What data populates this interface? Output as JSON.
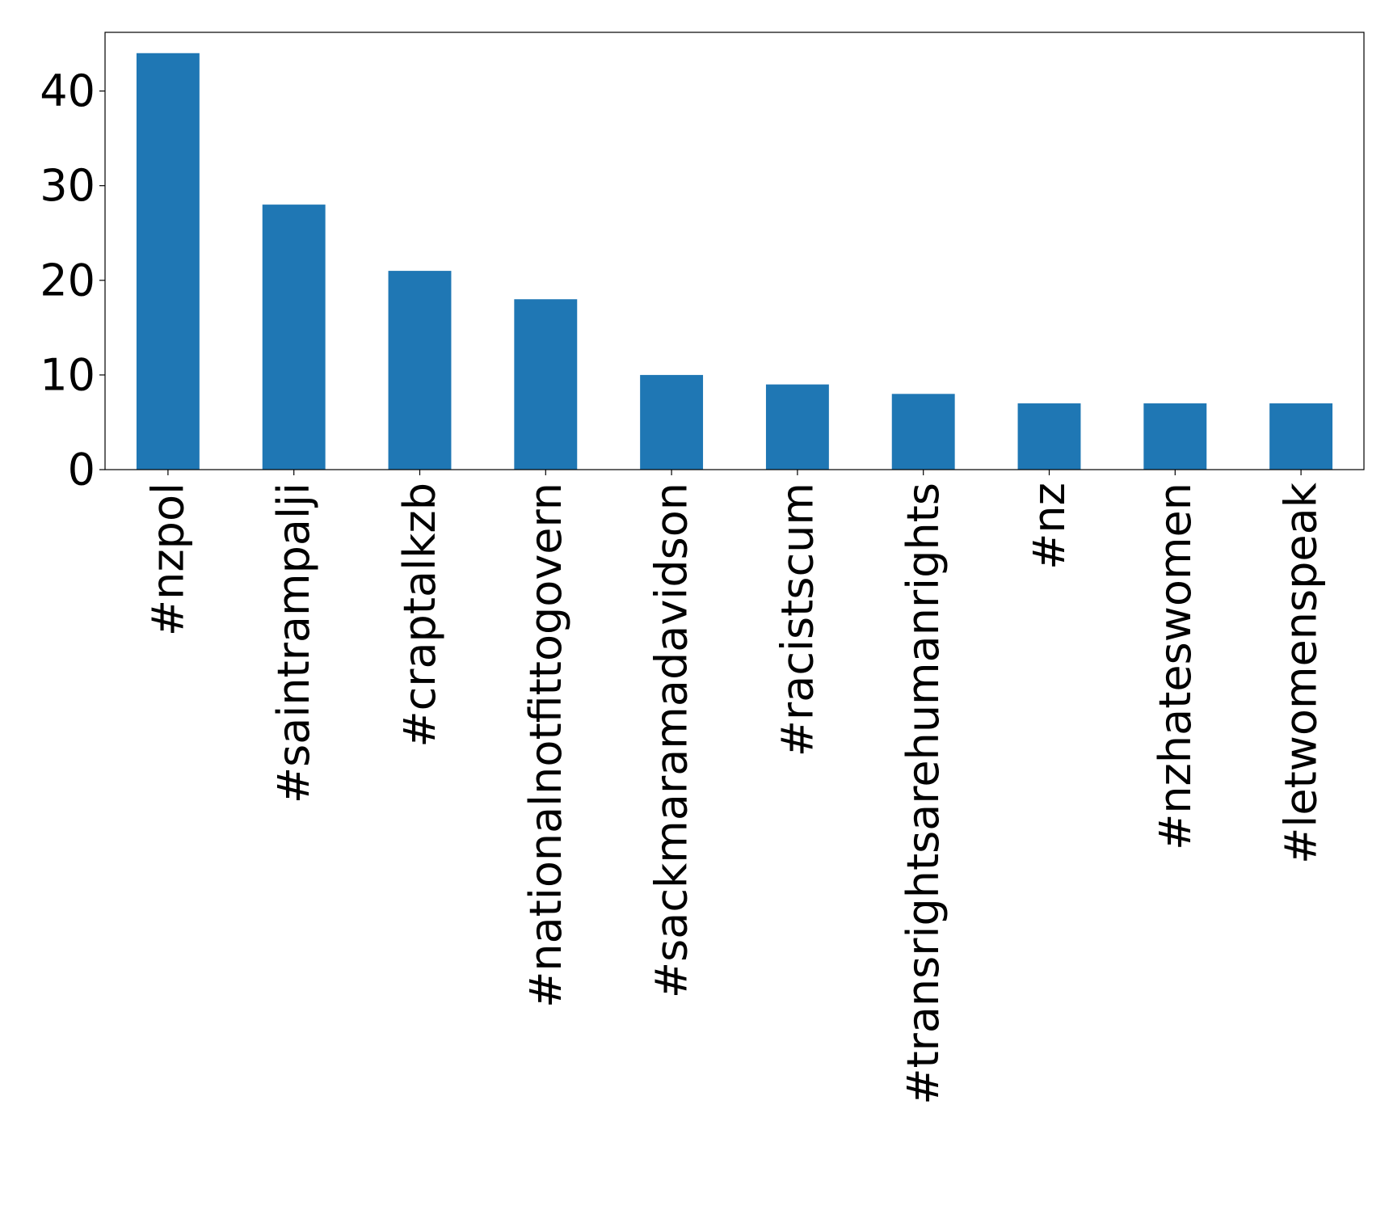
{
  "chart_data": {
    "type": "bar",
    "categories": [
      "#nzpol",
      "#saintrampalji",
      "#craptalkzb",
      "#nationalnotfittogovern",
      "#sackmaramadavidson",
      "#racistscum",
      "#transrightsarehumanrights",
      "#nz",
      "#nzhateswomen",
      "#letwomenspeak"
    ],
    "values": [
      44,
      28,
      21,
      18,
      10,
      9,
      8,
      7,
      7,
      7
    ],
    "title": "",
    "xlabel": "",
    "ylabel": "",
    "ylim": [
      0,
      46.2
    ],
    "yticks": [
      0,
      10,
      20,
      30,
      40
    ],
    "grid": false,
    "bar_color": "#1f77b4",
    "x_tick_rotation": "vertical"
  }
}
